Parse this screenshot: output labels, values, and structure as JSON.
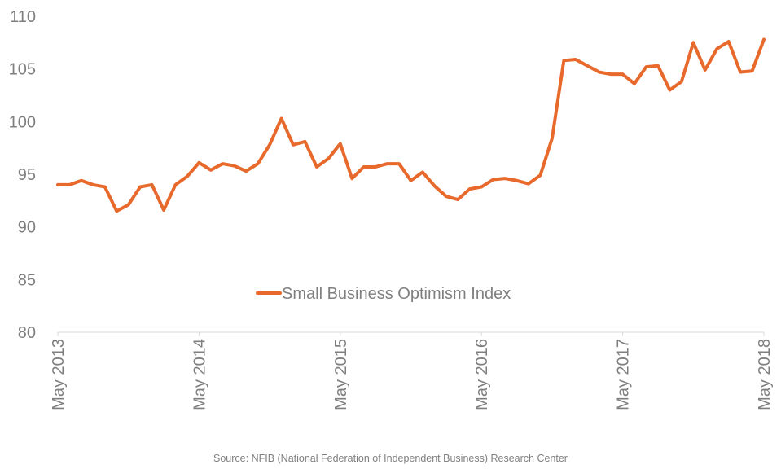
{
  "chart_data": {
    "type": "line",
    "title": "",
    "xlabel": "",
    "ylabel": "",
    "ylim": [
      80,
      110
    ],
    "yticks": [
      80,
      85,
      90,
      95,
      100,
      105,
      110
    ],
    "xtick_labels": [
      "May 2013",
      "May 2014",
      "May 2015",
      "May 2016",
      "May 2017",
      "May 2018"
    ],
    "grid": false,
    "legend_position": "center",
    "series": [
      {
        "name": "Small Business Optimism Index",
        "color": "#e8692c",
        "x": [
          "2013-05",
          "2013-06",
          "2013-07",
          "2013-08",
          "2013-09",
          "2013-10",
          "2013-11",
          "2013-12",
          "2014-01",
          "2014-02",
          "2014-03",
          "2014-04",
          "2014-05",
          "2014-06",
          "2014-07",
          "2014-08",
          "2014-09",
          "2014-10",
          "2014-11",
          "2014-12",
          "2015-01",
          "2015-02",
          "2015-03",
          "2015-04",
          "2015-05",
          "2015-06",
          "2015-07",
          "2015-08",
          "2015-09",
          "2015-10",
          "2015-11",
          "2015-12",
          "2016-01",
          "2016-02",
          "2016-03",
          "2016-04",
          "2016-05",
          "2016-06",
          "2016-07",
          "2016-08",
          "2016-09",
          "2016-10",
          "2016-11",
          "2016-12",
          "2017-01",
          "2017-02",
          "2017-03",
          "2017-04",
          "2017-05",
          "2017-06",
          "2017-07",
          "2017-08",
          "2017-09",
          "2017-10",
          "2017-11",
          "2017-12",
          "2018-01",
          "2018-02",
          "2018-03",
          "2018-04",
          "2018-05"
        ],
        "values": [
          94.0,
          94.0,
          94.4,
          94.0,
          93.8,
          91.5,
          92.1,
          93.8,
          94.0,
          91.6,
          94.0,
          94.8,
          96.1,
          95.4,
          96.0,
          95.8,
          95.3,
          96.0,
          97.8,
          100.3,
          97.8,
          98.1,
          95.7,
          96.5,
          97.9,
          94.6,
          95.7,
          95.7,
          96.0,
          96.0,
          94.4,
          95.2,
          93.9,
          92.9,
          92.6,
          93.6,
          93.8,
          94.5,
          94.6,
          94.4,
          94.1,
          94.9,
          98.4,
          105.8,
          105.9,
          105.3,
          104.7,
          104.5,
          104.5,
          103.6,
          105.2,
          105.3,
          103.0,
          103.8,
          107.5,
          104.9,
          106.9,
          107.6,
          104.7,
          104.8,
          107.8
        ]
      }
    ]
  },
  "source_text": "Source: NFIB (National Federation of Independent Business) Research Center"
}
